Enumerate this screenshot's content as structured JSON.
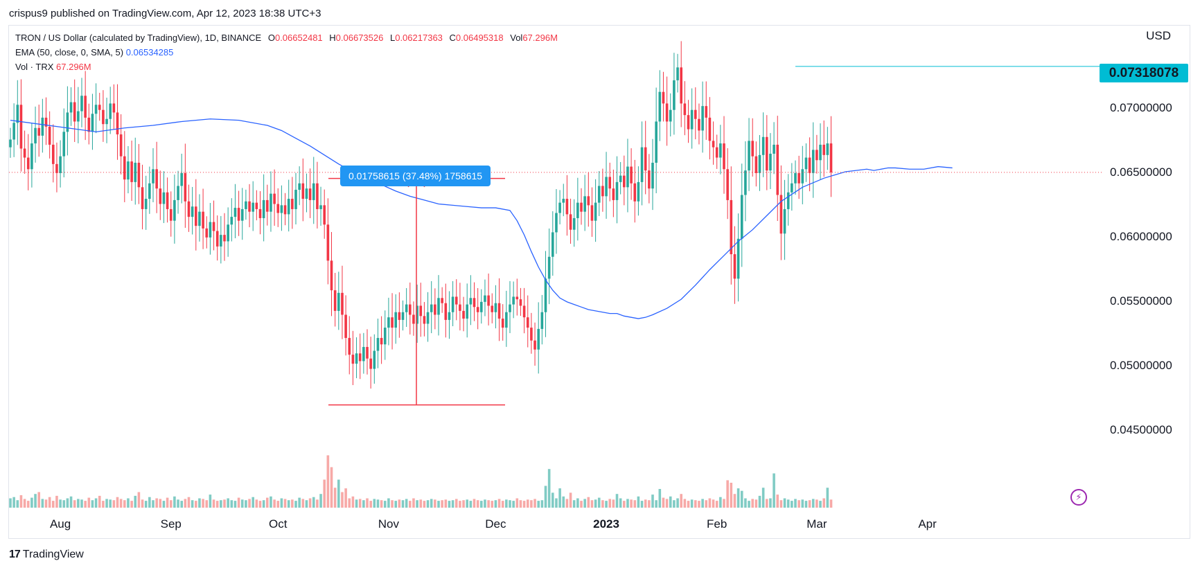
{
  "header": {
    "published_by": "crispus9 published on TradingView.com, Apr 12, 2023 18:38 UTC+3"
  },
  "legend": {
    "symbol": "TRON / US Dollar (calculated by TradingView), 1D, BINANCE",
    "open_label": "O",
    "open": "0.06652481",
    "high_label": "H",
    "high": "0.06673526",
    "low_label": "L",
    "low": "0.06217363",
    "close_label": "C",
    "close": "0.06495318",
    "vol_label": "Vol",
    "vol": "67.296M",
    "ema_label": "EMA (50, close, 0, SMA, 5)",
    "ema_value": "0.06534285",
    "volume_label": "Vol · TRX",
    "volume_value": "67.296M"
  },
  "axis": {
    "currency": "USD"
  },
  "price_tag": "0.07318078",
  "measure_label": "0.01758615 (37.48%) 1758615",
  "footer": {
    "logo_mark": "17",
    "logo_text": "TradingView"
  },
  "colors": {
    "up": "#26a69a",
    "down": "#f23645",
    "ema": "#2962ff",
    "horizontal": "#00bcd4",
    "measure": "#f23645",
    "bolt": "#9c27b0"
  },
  "icons": {
    "bolt": "lightning-bolt-icon"
  },
  "chart_data": {
    "type": "candlestick",
    "y_ticks": [
      "0.04500000",
      "0.05000000",
      "0.05500000",
      "0.06000000",
      "0.06500000",
      "0.07000000"
    ],
    "ylim": [
      0.0428,
      0.0758
    ],
    "x_ticks": [
      "Aug",
      "Sep",
      "Oct",
      "Nov",
      "Dec",
      "2023",
      "Feb",
      "Mar",
      "Apr"
    ],
    "horizontal_line": 0.07318078,
    "current_price": 0.06495318,
    "measure": {
      "from": 0.0469,
      "to": 0.06448,
      "delta": "0.01758615 (37.48%) 1758615"
    },
    "close": [
      0.0675,
      0.0688,
      0.0702,
      0.0668,
      0.0661,
      0.0652,
      0.0672,
      0.0684,
      0.0678,
      0.0692,
      0.0685,
      0.0671,
      0.0656,
      0.0649,
      0.0662,
      0.0681,
      0.0696,
      0.0704,
      0.0689,
      0.0697,
      0.0709,
      0.0692,
      0.0681,
      0.0695,
      0.0702,
      0.0698,
      0.0687,
      0.0691,
      0.0703,
      0.0696,
      0.0679,
      0.0662,
      0.0644,
      0.0658,
      0.0642,
      0.0657,
      0.0638,
      0.0621,
      0.0629,
      0.0641,
      0.0652,
      0.0637,
      0.0625,
      0.0634,
      0.0621,
      0.0612,
      0.0628,
      0.0639,
      0.0649,
      0.0627,
      0.0615,
      0.0623,
      0.0608,
      0.0619,
      0.0606,
      0.0599,
      0.0611,
      0.0604,
      0.0592,
      0.0601,
      0.0596,
      0.0609,
      0.0615,
      0.0622,
      0.0612,
      0.0621,
      0.0627,
      0.0619,
      0.0626,
      0.0621,
      0.0614,
      0.0628,
      0.0619,
      0.0633,
      0.0625,
      0.0618,
      0.0624,
      0.0617,
      0.0629,
      0.0621,
      0.0636,
      0.0641,
      0.0629,
      0.0637,
      0.0628,
      0.0641,
      0.0621,
      0.0624,
      0.0609,
      0.0581,
      0.0558,
      0.0542,
      0.0556,
      0.0539,
      0.0521,
      0.0508,
      0.0501,
      0.0509,
      0.0503,
      0.0514,
      0.0505,
      0.0497,
      0.0511,
      0.0521,
      0.0516,
      0.0529,
      0.0537,
      0.0529,
      0.0541,
      0.0535,
      0.0541,
      0.0547,
      0.0539,
      0.0532,
      0.0546,
      0.0538,
      0.0532,
      0.0541,
      0.0547,
      0.0539,
      0.0552,
      0.0548,
      0.0535,
      0.0541,
      0.0553,
      0.0547,
      0.0542,
      0.0536,
      0.0547,
      0.0552,
      0.0545,
      0.0541,
      0.0549,
      0.0554,
      0.0546,
      0.0541,
      0.0548,
      0.0536,
      0.0529,
      0.0541,
      0.0547,
      0.0553,
      0.0551,
      0.0546,
      0.0537,
      0.0529,
      0.0519,
      0.0512,
      0.0528,
      0.0541,
      0.0567,
      0.0584,
      0.0603,
      0.0618,
      0.0626,
      0.0629,
      0.0617,
      0.0605,
      0.0614,
      0.0626,
      0.0619,
      0.0631,
      0.0624,
      0.0612,
      0.0626,
      0.0639,
      0.0631,
      0.0646,
      0.0637,
      0.0628,
      0.0642,
      0.0647,
      0.0638,
      0.0654,
      0.0641,
      0.0627,
      0.0642,
      0.0669,
      0.0651,
      0.0637,
      0.0657,
      0.0689,
      0.0712,
      0.0703,
      0.0689,
      0.0698,
      0.0721,
      0.0731,
      0.0703,
      0.0694,
      0.0683,
      0.0698,
      0.0691,
      0.0682,
      0.0701,
      0.0692,
      0.0674,
      0.0669,
      0.0661,
      0.0672,
      0.0652,
      0.0628,
      0.0586,
      0.0567,
      0.0598,
      0.0632,
      0.0651,
      0.0674,
      0.0662,
      0.0649,
      0.0663,
      0.0677,
      0.0651,
      0.0664,
      0.0671,
      0.0632,
      0.0602,
      0.0621,
      0.0634,
      0.0641,
      0.0649,
      0.0641,
      0.0652,
      0.0661,
      0.0649,
      0.0667,
      0.0659,
      0.0671,
      0.0663,
      0.0672,
      0.06495
    ],
    "ema": [
      0.069,
      0.0687,
      0.0684,
      0.0681,
      0.0684,
      0.0686,
      0.0689,
      0.0691,
      0.069,
      0.0686,
      0.0682,
      0.0676,
      0.067,
      0.0663,
      0.0656,
      0.065,
      0.0645,
      0.064,
      0.0635,
      0.0631,
      0.0628,
      0.0625,
      0.0624,
      0.0623,
      0.0622,
      0.0622,
      0.062,
      0.0612,
      0.0601,
      0.0588,
      0.0576,
      0.0566,
      0.0558,
      0.0552,
      0.0549,
      0.0547,
      0.0545,
      0.0543,
      0.0542,
      0.0541,
      0.054,
      0.054,
      0.0538,
      0.0537,
      0.0536,
      0.0537,
      0.0539,
      0.0544,
      0.0551,
      0.0562,
      0.0574,
      0.0585,
      0.0596,
      0.0605,
      0.0616,
      0.0627,
      0.0638,
      0.0645,
      0.065,
      0.0652,
      0.0651,
      0.0653,
      0.0653,
      0.0652,
      0.0652,
      0.0654,
      0.0653
    ],
    "ema_x_days": [
      0,
      8,
      16,
      24,
      32,
      40,
      48,
      56,
      64,
      72,
      76,
      80,
      84,
      88,
      92,
      96,
      100,
      104,
      108,
      112,
      116,
      120,
      124,
      128,
      132,
      136,
      140,
      142,
      144,
      146,
      148,
      150,
      152,
      154,
      156,
      158,
      160,
      162,
      164,
      166,
      168,
      170,
      172,
      174,
      176,
      178,
      180,
      184,
      188,
      192,
      196,
      200,
      204,
      208,
      212,
      216,
      222,
      228,
      234,
      240,
      242,
      246,
      248,
      252,
      256,
      260,
      264
    ],
    "volume": [
      15,
      17,
      12,
      20,
      14,
      11,
      16,
      22,
      25,
      14,
      13,
      17,
      11,
      19,
      13,
      12,
      15,
      18,
      12,
      14,
      13,
      11,
      16,
      12,
      15,
      19,
      11,
      14,
      13,
      12,
      17,
      14,
      12,
      15,
      11,
      19,
      25,
      13,
      11,
      17,
      12,
      15,
      14,
      11,
      16,
      12,
      18,
      13,
      11,
      14,
      17,
      12,
      11,
      15,
      14,
      12,
      21,
      13,
      11,
      12,
      13,
      15,
      12,
      11,
      16,
      13,
      12,
      14,
      17,
      13,
      11,
      12,
      16,
      18,
      13,
      11,
      15,
      14,
      12,
      13,
      11,
      16,
      14,
      12,
      15,
      17,
      13,
      22,
      45,
      84,
      65,
      32,
      45,
      25,
      31,
      15,
      18,
      13,
      14,
      12,
      15,
      11,
      14,
      13,
      12,
      11,
      15,
      12,
      11,
      13,
      12,
      14,
      11,
      15,
      12,
      13,
      11,
      12,
      14,
      13,
      11,
      12,
      13,
      11,
      12,
      14,
      11,
      12,
      13,
      11,
      14,
      12,
      11,
      13,
      12,
      11,
      12,
      14,
      11,
      13,
      12,
      11,
      15,
      12,
      11,
      13,
      12,
      14,
      11,
      12,
      35,
      62,
      24,
      15,
      31,
      18,
      14,
      24,
      12,
      15,
      11,
      14,
      17,
      12,
      13,
      16,
      12,
      11,
      14,
      13,
      22,
      15,
      11,
      14,
      13,
      12,
      18,
      11,
      13,
      12,
      21,
      12,
      30,
      16,
      14,
      18,
      12,
      15,
      22,
      14,
      11,
      13,
      12,
      11,
      14,
      12,
      15,
      13,
      11,
      17,
      14,
      44,
      40,
      22,
      31,
      27,
      15,
      11,
      14,
      13,
      19,
      32,
      14,
      15,
      55,
      21,
      12,
      15,
      13,
      11,
      14,
      12,
      13,
      11,
      12,
      14,
      13,
      11,
      15,
      32,
      13
    ],
    "vol_max": 100
  }
}
